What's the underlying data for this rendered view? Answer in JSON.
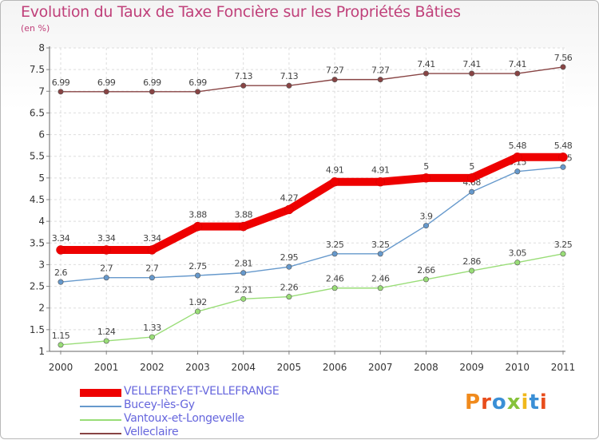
{
  "title": "Evolution du Taux de Taxe Foncière sur les Propriétés Bâties",
  "subtitle": "(en %)",
  "logo": "Proxiti",
  "chart_data": {
    "type": "line",
    "title": "Evolution du Taux de Taxe Foncière sur les Propriétés Bâties",
    "ylabel": "(en %)",
    "xlabel": "",
    "ylim": [
      1,
      8
    ],
    "yticks": [
      "1",
      "1.5",
      "2",
      "2.5",
      "3",
      "3.5",
      "4",
      "4.5",
      "5",
      "5.5",
      "6",
      "6.5",
      "7",
      "7.5",
      "8"
    ],
    "x": [
      "2000",
      "2001",
      "2002",
      "2003",
      "2004",
      "2005",
      "2006",
      "2007",
      "2008",
      "2009",
      "2010",
      "2011"
    ],
    "grid": true,
    "legend_position": "bottom-left",
    "series": [
      {
        "name": "VELLEFREY-ET-VELLEFRANGE",
        "color": "#ee0000",
        "values": [
          3.34,
          3.34,
          3.34,
          3.88,
          3.88,
          4.27,
          4.91,
          4.91,
          5,
          5,
          5.48,
          5.48
        ],
        "labels": [
          "3.34",
          "3.34",
          "3.34",
          "3.88",
          "3.88",
          "4.27",
          "4.91",
          "4.91",
          "5",
          "5",
          "5.48",
          "5.48"
        ]
      },
      {
        "name": "Bucey-lès-Gy",
        "color": "#6699cc",
        "values": [
          2.6,
          2.7,
          2.7,
          2.75,
          2.81,
          2.95,
          3.25,
          3.25,
          3.9,
          4.68,
          5.15,
          5.25
        ],
        "labels": [
          "2.6",
          "2.7",
          "2.7",
          "2.75",
          "2.81",
          "2.95",
          "3.25",
          "3.25",
          "3.9",
          "4.68",
          "5.15",
          "5.25"
        ]
      },
      {
        "name": "Vantoux-et-Longevelle",
        "color": "#99dd77",
        "values": [
          1.15,
          1.24,
          1.33,
          1.92,
          2.21,
          2.26,
          2.46,
          2.46,
          2.66,
          2.86,
          3.05,
          3.25
        ],
        "labels": [
          "1.15",
          "1.24",
          "1.33",
          "1.92",
          "2.21",
          "2.26",
          "2.46",
          "2.46",
          "2.66",
          "2.86",
          "3.05",
          "3.25"
        ]
      },
      {
        "name": "Velleclaire",
        "color": "#884444",
        "values": [
          6.99,
          6.99,
          6.99,
          6.99,
          7.13,
          7.13,
          7.27,
          7.27,
          7.41,
          7.41,
          7.41,
          7.56
        ],
        "labels": [
          "6.99",
          "6.99",
          "6.99",
          "6.99",
          "7.13",
          "7.13",
          "7.27",
          "7.27",
          "7.41",
          "7.41",
          "7.41",
          "7.56"
        ]
      }
    ]
  }
}
